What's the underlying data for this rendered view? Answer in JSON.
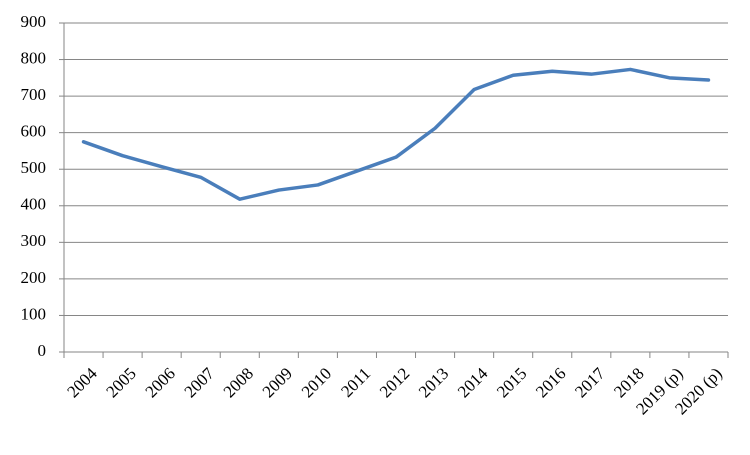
{
  "chart_data": {
    "type": "line",
    "categories": [
      "2004",
      "2005",
      "2006",
      "2007",
      "2008",
      "2009",
      "2010",
      "2011",
      "2012",
      "2013",
      "2014",
      "2015",
      "2016",
      "2017",
      "2018",
      "2019 (p)",
      "2020 (p)"
    ],
    "series": [
      {
        "color": "#4a7ebb",
        "values": [
          575,
          537,
          507,
          478,
          418,
          443,
          457,
          495,
          533,
          612,
          718,
          757,
          768,
          760,
          773,
          750,
          744
        ]
      }
    ],
    "ylim": [
      0,
      900
    ],
    "yticks": [
      0,
      100,
      200,
      300,
      400,
      500,
      600,
      700,
      800,
      900
    ],
    "grid": true
  }
}
